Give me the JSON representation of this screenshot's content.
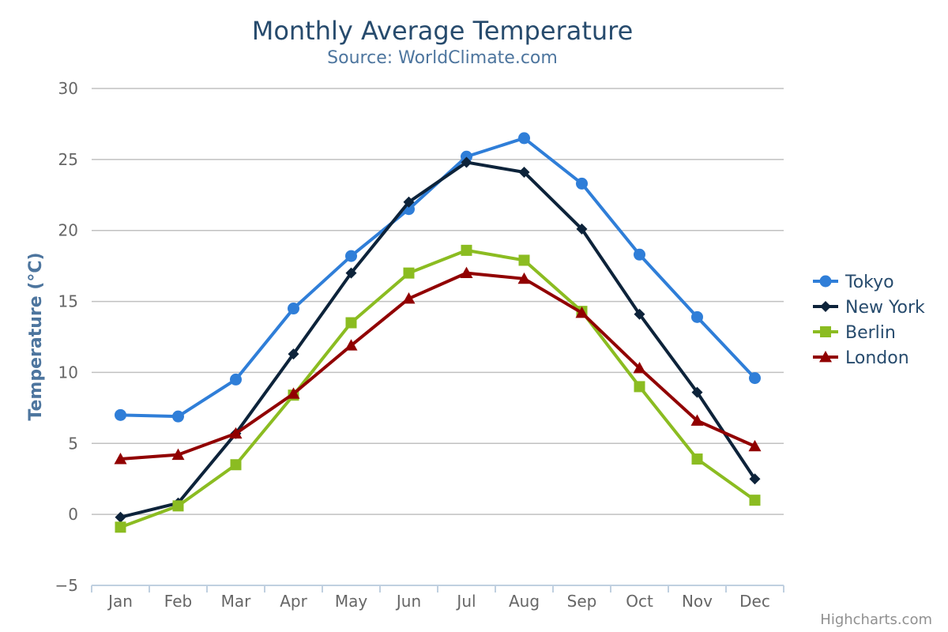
{
  "chart_data": {
    "type": "line",
    "title": "Monthly Average Temperature",
    "subtitle": "Source: WorldClimate.com",
    "xlabel": "",
    "ylabel": "Temperature (°C)",
    "categories": [
      "Jan",
      "Feb",
      "Mar",
      "Apr",
      "May",
      "Jun",
      "Jul",
      "Aug",
      "Sep",
      "Oct",
      "Nov",
      "Dec"
    ],
    "yticks": [
      "−5",
      "0",
      "5",
      "10",
      "15",
      "20",
      "25",
      "30"
    ],
    "ylim": [
      -5,
      30
    ],
    "grid": true,
    "legend_position": "right",
    "credits": "Highcharts.com",
    "series": [
      {
        "name": "Tokyo",
        "color": "#2f7ed8",
        "marker": "circle",
        "values": [
          7.0,
          6.9,
          9.5,
          14.5,
          18.2,
          21.5,
          25.2,
          26.5,
          23.3,
          18.3,
          13.9,
          9.6
        ]
      },
      {
        "name": "New York",
        "color": "#0d233a",
        "marker": "diamond",
        "values": [
          -0.2,
          0.8,
          5.7,
          11.3,
          17.0,
          22.0,
          24.8,
          24.1,
          20.1,
          14.1,
          8.6,
          2.5
        ]
      },
      {
        "name": "Berlin",
        "color": "#8bbc21",
        "marker": "square",
        "values": [
          -0.9,
          0.6,
          3.5,
          8.4,
          13.5,
          17.0,
          18.6,
          17.9,
          14.3,
          9.0,
          3.9,
          1.0
        ]
      },
      {
        "name": "London",
        "color": "#910000",
        "marker": "triangle",
        "values": [
          3.9,
          4.2,
          5.7,
          8.5,
          11.9,
          15.2,
          17.0,
          16.6,
          14.2,
          10.3,
          6.6,
          4.8
        ]
      }
    ]
  },
  "colors": {
    "title": "#274b6d",
    "subtitle": "#4d759e",
    "axis_title": "#4d759e",
    "tick_label": "#666666",
    "gridline": "#c0c0c0",
    "x_axis_line": "#c0d0e0",
    "legend_text": "#274b6d",
    "credits": "#909090"
  }
}
